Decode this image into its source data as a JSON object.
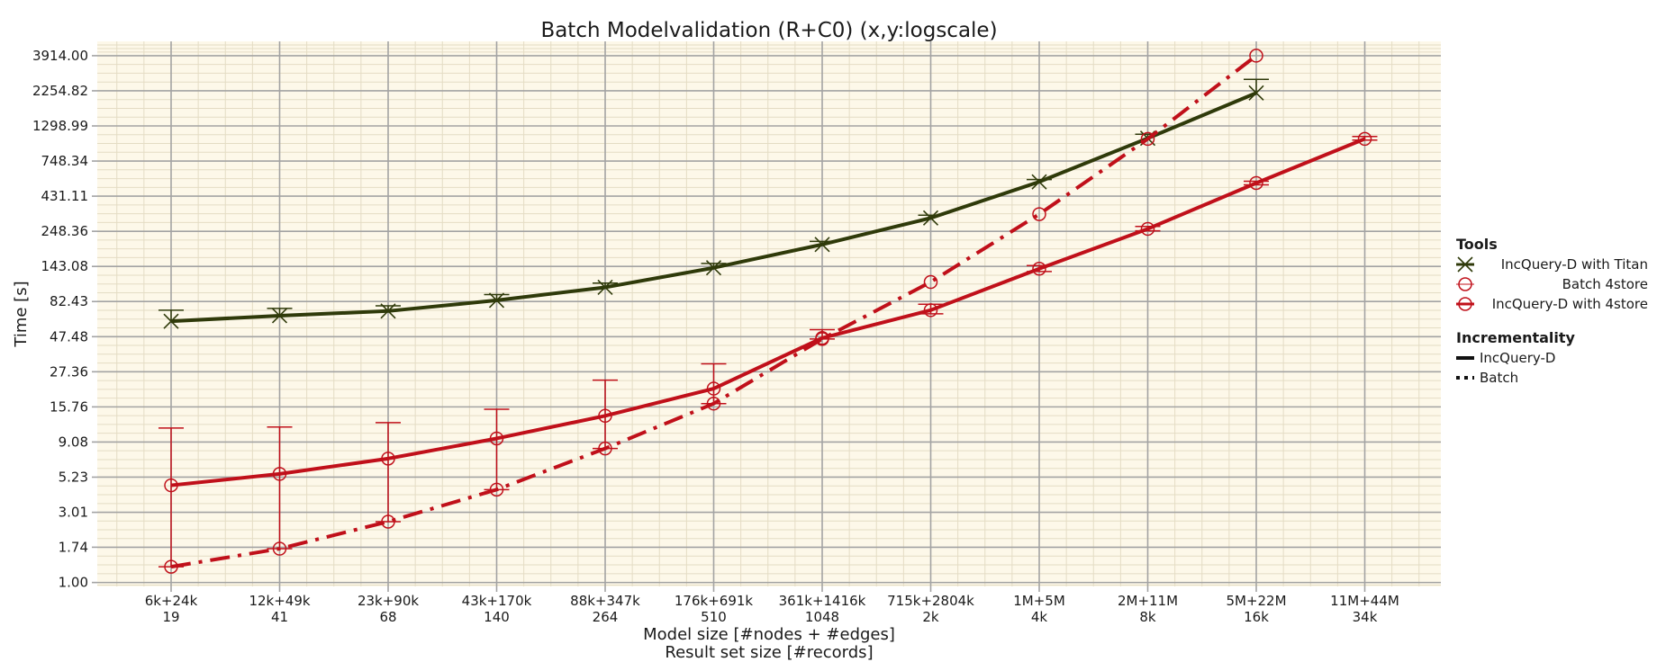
{
  "chart_data": {
    "type": "line",
    "title": "Batch Modelvalidation (R+C0) (x,y:logscale)",
    "xlabel": "Model size [#nodes + #edges]",
    "xlabel2": "Result set size [#records]",
    "ylabel": "Time [s]",
    "y_scale": "log",
    "ylim": [
      0.94,
      4900
    ],
    "grid": true,
    "categories": [
      {
        "top": "6k+24k",
        "bottom": "19"
      },
      {
        "top": "12k+49k",
        "bottom": "41"
      },
      {
        "top": "23k+90k",
        "bottom": "68"
      },
      {
        "top": "43k+170k",
        "bottom": "140"
      },
      {
        "top": "88k+347k",
        "bottom": "264"
      },
      {
        "top": "176k+691k",
        "bottom": "510"
      },
      {
        "top": "361k+1416k",
        "bottom": "1048"
      },
      {
        "top": "715k+2804k",
        "bottom": "2k"
      },
      {
        "top": "1M+5M",
        "bottom": "4k"
      },
      {
        "top": "2M+11M",
        "bottom": "8k"
      },
      {
        "top": "5M+22M",
        "bottom": "16k"
      },
      {
        "top": "11M+44M",
        "bottom": "34k"
      }
    ],
    "y_ticks": [
      {
        "value": 1.0,
        "label": "1.00"
      },
      {
        "value": 1.74,
        "label": "1.74"
      },
      {
        "value": 3.01,
        "label": "3.01"
      },
      {
        "value": 5.23,
        "label": "5.23"
      },
      {
        "value": 9.08,
        "label": "9.08"
      },
      {
        "value": 15.76,
        "label": "15.76"
      },
      {
        "value": 27.36,
        "label": "27.36"
      },
      {
        "value": 47.48,
        "label": "47.48"
      },
      {
        "value": 82.43,
        "label": "82.43"
      },
      {
        "value": 143.08,
        "label": "143.08"
      },
      {
        "value": 248.36,
        "label": "248.36"
      },
      {
        "value": 431.11,
        "label": "431.11"
      },
      {
        "value": 748.34,
        "label": "748.34"
      },
      {
        "value": 1298.99,
        "label": "1298.99"
      },
      {
        "value": 2254.82,
        "label": "2254.82"
      },
      {
        "value": 3914.0,
        "label": "3914.00"
      }
    ],
    "series": [
      {
        "name": "IncQuery-D with Titan",
        "tool": "IncQuery-D with Titan",
        "incrementality": "IncQuery-D",
        "color": "#2f3a0a",
        "style": "solid",
        "marker": "x",
        "values": [
          60.5,
          66,
          71,
          84,
          103,
          140,
          202,
          306,
          540,
          1070,
          2180,
          null
        ],
        "err_low": [
          null,
          null,
          null,
          null,
          null,
          null,
          null,
          null,
          null,
          null,
          null,
          null
        ],
        "err_high": [
          72,
          74,
          77,
          92,
          110,
          150,
          212,
          320,
          560,
          1140,
          2700,
          null
        ]
      },
      {
        "name": "Batch 4store",
        "tool": "Batch 4store",
        "incrementality": "Batch",
        "color": "#c0101a",
        "style": "dashdot",
        "marker": "o",
        "values": [
          1.28,
          1.7,
          2.6,
          4.3,
          8.2,
          16.6,
          45.8,
          112,
          325,
          1060,
          3914,
          null
        ],
        "err_low": [
          null,
          null,
          null,
          null,
          null,
          null,
          null,
          null,
          null,
          null,
          null,
          null
        ],
        "err_high": [
          null,
          null,
          null,
          null,
          null,
          null,
          null,
          null,
          null,
          null,
          null,
          null
        ]
      },
      {
        "name": "IncQuery-D with 4store",
        "tool": "IncQuery-D with 4store",
        "incrementality": "IncQuery-D",
        "color": "#c0101a",
        "style": "solid",
        "marker": "o",
        "values": [
          4.6,
          5.5,
          7.0,
          9.6,
          13.7,
          21.0,
          46.5,
          72,
          138,
          258,
          530,
          1060
        ],
        "err_low": [
          1.28,
          1.7,
          2.6,
          4.3,
          8.2,
          16.6,
          45.8,
          68,
          132,
          250,
          515,
          1040
        ],
        "err_high": [
          11.3,
          11.5,
          12.3,
          15.2,
          24,
          31,
          53,
          79,
          145,
          268,
          545,
          1100
        ]
      }
    ],
    "legend": {
      "placement": "right",
      "tools_title": "Tools",
      "tools": [
        "IncQuery-D with Titan",
        "Batch 4store",
        "IncQuery-D with 4store"
      ],
      "incrementality_title": "Incrementality",
      "incrementality": [
        "IncQuery-D",
        "Batch"
      ]
    },
    "colors": {
      "plot_background": "#fdf8e9",
      "grid_major": "#a3a3a3",
      "grid_minor": "#e4dcc4"
    }
  }
}
